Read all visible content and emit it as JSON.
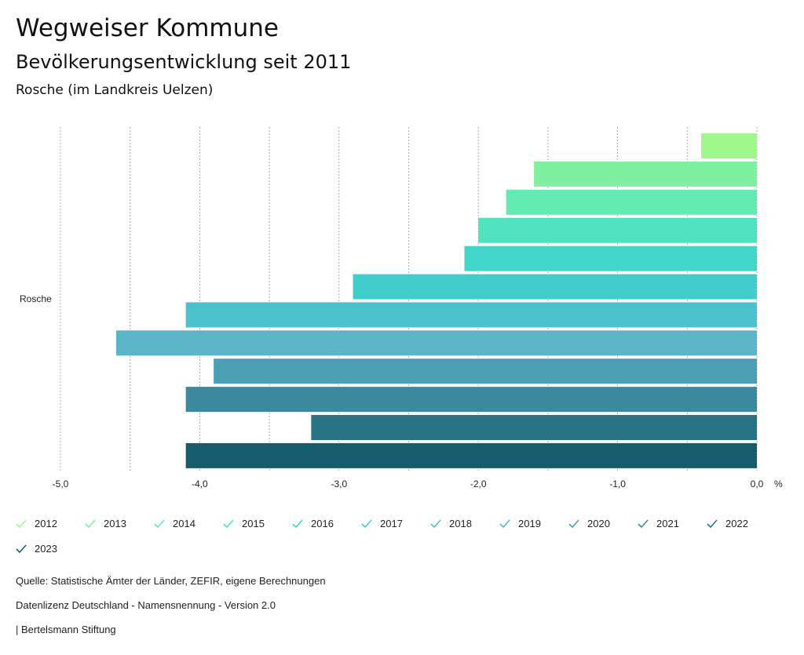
{
  "header": {
    "title": "Wegweiser Kommune",
    "subtitle": "Bevölkerungsentwicklung seit 2011",
    "region": "Rosche (im Landkreis Uelzen)"
  },
  "chart_data": {
    "type": "bar",
    "orientation": "horizontal",
    "categories": [
      "Rosche"
    ],
    "xlim": [
      -5.0,
      0.0
    ],
    "x_unit": "%",
    "x_ticks": [
      "-5,0",
      "-4,0",
      "-3,0",
      "-2,0",
      "-1,0",
      "0,0"
    ],
    "grid": true,
    "series": [
      {
        "name": "2012",
        "values": [
          -0.4
        ],
        "color": "#9ef78a"
      },
      {
        "name": "2013",
        "values": [
          -1.6
        ],
        "color": "#7ff0a2"
      },
      {
        "name": "2014",
        "values": [
          -1.8
        ],
        "color": "#63eab2"
      },
      {
        "name": "2015",
        "values": [
          -2.0
        ],
        "color": "#4fe2bf"
      },
      {
        "name": "2016",
        "values": [
          -2.1
        ],
        "color": "#42d6c8"
      },
      {
        "name": "2017",
        "values": [
          -2.9
        ],
        "color": "#42cdcd"
      },
      {
        "name": "2018",
        "values": [
          -4.1
        ],
        "color": "#4bc1cd"
      },
      {
        "name": "2019",
        "values": [
          -4.6
        ],
        "color": "#5cb4c8"
      },
      {
        "name": "2020",
        "values": [
          -3.9
        ],
        "color": "#4b9eb3"
      },
      {
        "name": "2021",
        "values": [
          -4.1
        ],
        "color": "#3b899c"
      },
      {
        "name": "2022",
        "values": [
          -3.2
        ],
        "color": "#287384"
      },
      {
        "name": "2023",
        "values": [
          -4.1
        ],
        "color": "#175c6c"
      }
    ]
  },
  "footer": {
    "source": "Quelle: Statistische Ämter der Länder, ZEFIR, eigene Berechnungen",
    "license": "Datenlizenz Deutschland - Namensnennung - Version 2.0",
    "publisher": "| Bertelsmann Stiftung"
  }
}
